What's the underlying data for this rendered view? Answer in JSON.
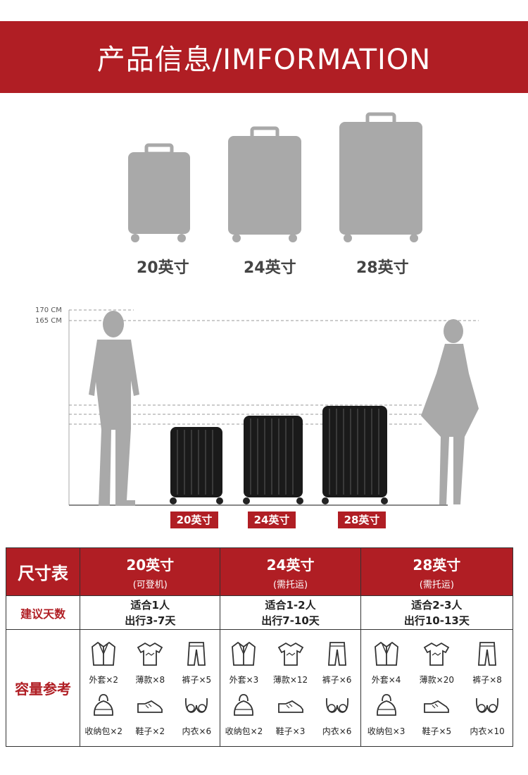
{
  "banner": {
    "title": "产品信息/IMFORMATION"
  },
  "sizes": [
    "20英寸",
    "24英寸",
    "28英寸"
  ],
  "height_labels": [
    "170 CM",
    "165 CM"
  ],
  "size_tags": [
    "20英寸",
    "24英寸",
    "28英寸"
  ],
  "colors": {
    "brand_red": "#b01e24",
    "silhouette_gray": "#a9a9a9",
    "luggage_black": "#1a1a1a"
  },
  "table": {
    "header_label": "尺寸表",
    "columns": [
      {
        "size": "20英寸",
        "note": "(可登机)"
      },
      {
        "size": "24英寸",
        "note": "(需托运)"
      },
      {
        "size": "28英寸",
        "note": "(需托运)"
      }
    ],
    "days_label": "建议天数",
    "days": [
      {
        "line1": "适合1人",
        "line2": "出行3-7天"
      },
      {
        "line1": "适合1-2人",
        "line2": "出行7-10天"
      },
      {
        "line1": "适合2-3人",
        "line2": "出行10-13天"
      }
    ],
    "capacity_label": "容量参考",
    "capacity": [
      [
        "外套×2",
        "薄款×8",
        "裤子×5",
        "收纳包×2",
        "鞋子×2",
        "内衣×6"
      ],
      [
        "外套×3",
        "薄款×12",
        "裤子×6",
        "收纳包×2",
        "鞋子×3",
        "内衣×6"
      ],
      [
        "外套×4",
        "薄款×20",
        "裤子×8",
        "收纳包×3",
        "鞋子×5",
        "内衣×10"
      ]
    ],
    "capacity_icons": [
      "jacket-icon",
      "tshirt-icon",
      "pants-icon",
      "bag-icon",
      "shoe-icon",
      "underwear-icon"
    ]
  }
}
